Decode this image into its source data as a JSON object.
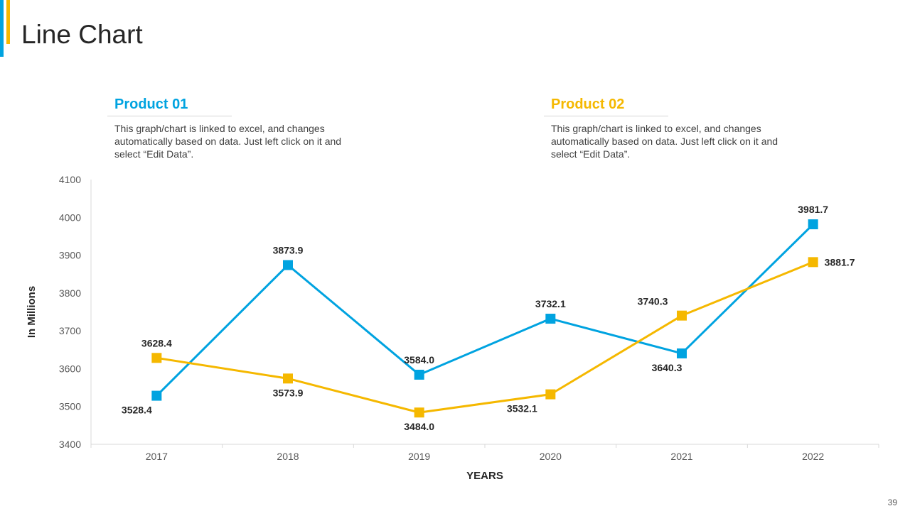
{
  "slide": {
    "title": "Line Chart",
    "page_number": "39"
  },
  "legend_blocks": [
    {
      "heading": "Product 01",
      "color": "#00A3E0",
      "description": "This graph/chart is linked to excel, and changes automatically based on data. Just left click on it and select “Edit Data”."
    },
    {
      "heading": "Product 02",
      "color": "#F5B800",
      "description": "This graph/chart is linked to excel, and changes automatically based on data. Just left click on it and select “Edit Data”."
    }
  ],
  "chart_data": {
    "type": "line",
    "x": [
      "2017",
      "2018",
      "2019",
      "2020",
      "2021",
      "2022"
    ],
    "series": [
      {
        "name": "Product 01",
        "color": "#00A3E0",
        "values": [
          3528.4,
          3873.9,
          3584.0,
          3732.1,
          3640.3,
          3981.7
        ],
        "labels": [
          "3528.4",
          "3873.9",
          "3584.0",
          "3732.1",
          "3640.3",
          "3981.7"
        ]
      },
      {
        "name": "Product 02",
        "color": "#F5B800",
        "values": [
          3628.4,
          3573.9,
          3484.0,
          3532.1,
          3740.3,
          3881.7
        ],
        "labels": [
          "3628.4",
          "3573.9",
          "3484.0",
          "3532.1",
          "3740.3",
          "3881.7"
        ]
      }
    ],
    "xlabel": "YEARS",
    "ylabel": "In Millions",
    "ylim": [
      3400,
      4100
    ],
    "yticks": [
      3400,
      3500,
      3600,
      3700,
      3800,
      3900,
      4000,
      4100
    ],
    "grid": false
  }
}
